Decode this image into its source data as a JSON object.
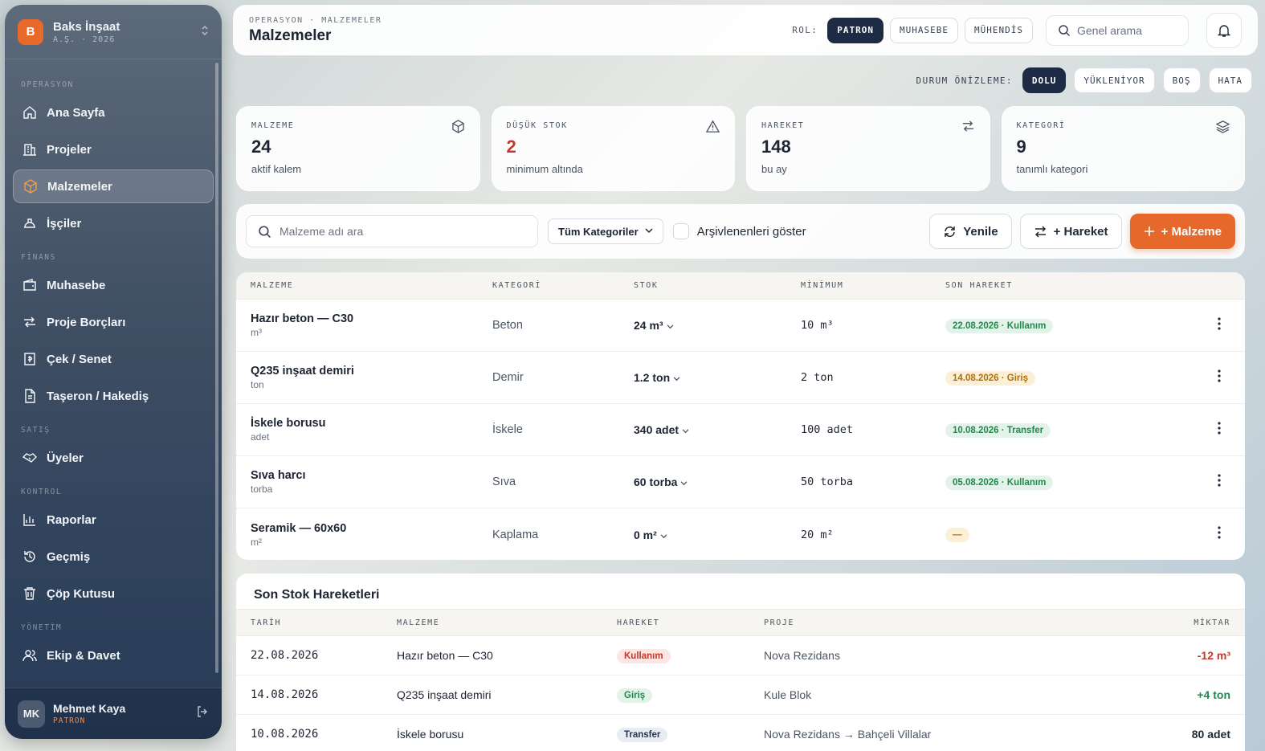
{
  "brand": {
    "logo_letter": "B",
    "name": "Baks İnşaat",
    "sub": "A.Ş. · 2026"
  },
  "sidebar": {
    "sections": [
      {
        "label": "OPERASYON",
        "items": [
          {
            "label": "Ana Sayfa",
            "icon": "home-icon",
            "active": false
          },
          {
            "label": "Projeler",
            "icon": "building-icon",
            "active": false
          },
          {
            "label": "Malzemeler",
            "icon": "box-icon",
            "active": true
          },
          {
            "label": "İşçiler",
            "icon": "helmet-icon",
            "active": false
          }
        ]
      },
      {
        "label": "FİNANS",
        "items": [
          {
            "label": "Muhasebe",
            "icon": "wallet-icon",
            "active": false
          },
          {
            "label": "Proje Borçları",
            "icon": "transfer-icon",
            "active": false
          },
          {
            "label": "Çek / Senet",
            "icon": "receipt-icon",
            "active": false
          },
          {
            "label": "Taşeron / Hakediş",
            "icon": "document-icon",
            "active": false
          }
        ]
      },
      {
        "label": "SATIŞ",
        "items": [
          {
            "label": "Üyeler",
            "icon": "handshake-icon",
            "active": false
          }
        ]
      },
      {
        "label": "KONTROL",
        "items": [
          {
            "label": "Raporlar",
            "icon": "bar-chart-icon",
            "active": false
          },
          {
            "label": "Geçmiş",
            "icon": "history-icon",
            "active": false
          },
          {
            "label": "Çöp Kutusu",
            "icon": "trash-icon",
            "active": false
          }
        ]
      },
      {
        "label": "YÖNETİM",
        "items": [
          {
            "label": "Ekip & Davet",
            "icon": "team-icon",
            "active": false
          }
        ]
      }
    ]
  },
  "user": {
    "initials": "MK",
    "name": "Mehmet Kaya",
    "role": "PATRON"
  },
  "header": {
    "breadcrumb": "OPERASYON · MALZEMELER",
    "title": "Malzemeler",
    "role_label": "ROL:",
    "roles": [
      "PATRON",
      "MUHASEBE",
      "MÜHENDİS"
    ],
    "active_role": "PATRON",
    "search_placeholder": "Genel arama"
  },
  "preview": {
    "label": "DURUM ÖNİZLEME:",
    "states": [
      "DOLU",
      "YÜKLENİYOR",
      "BOŞ",
      "HATA"
    ],
    "active": "DOLU"
  },
  "stats": [
    {
      "label": "MALZEME",
      "value": "24",
      "sub": "aktif kalem",
      "icon": "cube-icon",
      "alert": false
    },
    {
      "label": "DÜŞÜK STOK",
      "value": "2",
      "sub": "minimum altında",
      "icon": "warning-icon",
      "alert": true
    },
    {
      "label": "HAREKET",
      "value": "148",
      "sub": "bu ay",
      "icon": "swap-icon",
      "alert": false
    },
    {
      "label": "KATEGORİ",
      "value": "9",
      "sub": "tanımlı kategori",
      "icon": "layers-icon",
      "alert": false
    }
  ],
  "toolbar": {
    "search_placeholder": "Malzeme adı ara",
    "category_select": "Tüm Kategoriler",
    "archive_label": "Arşivlenenleri göster",
    "refresh_label": "Yenile",
    "movement_label": "+ Hareket",
    "add_label": "+ Malzeme"
  },
  "table": {
    "headers": [
      "MALZEME",
      "KATEGORİ",
      "STOK",
      "MİNİMUM",
      "SON HAREKET"
    ],
    "rows": [
      {
        "name": "Hazır beton — C30",
        "unit": "m³",
        "category": "Beton",
        "stock": "24 m³",
        "minimum": "10 m³",
        "last": "22.08.2026 · Kullanım",
        "last_color": "green"
      },
      {
        "name": "Q235 inşaat demiri",
        "unit": "ton",
        "category": "Demir",
        "stock": "1.2 ton",
        "minimum": "2 ton",
        "last": "14.08.2026 · Giriş",
        "last_color": "amber"
      },
      {
        "name": "İskele borusu",
        "unit": "adet",
        "category": "İskele",
        "stock": "340 adet",
        "minimum": "100 adet",
        "last": "10.08.2026 · Transfer",
        "last_color": "green"
      },
      {
        "name": "Sıva harcı",
        "unit": "torba",
        "category": "Sıva",
        "stock": "60 torba",
        "minimum": "50 torba",
        "last": "05.08.2026 · Kullanım",
        "last_color": "green"
      },
      {
        "name": "Seramik — 60x60",
        "unit": "m²",
        "category": "Kaplama",
        "stock": "0 m²",
        "minimum": "20 m²",
        "last": "—",
        "last_color": "amber"
      }
    ]
  },
  "movements": {
    "title": "Son Stok Hareketleri",
    "headers": [
      "TARİH",
      "MALZEME",
      "HAREKET",
      "PROJE",
      "MİKTAR"
    ],
    "rows": [
      {
        "date": "22.08.2026",
        "material": "Hazır beton — C30",
        "type": "Kullanım",
        "type_color": "red",
        "project": "Nova Rezidans",
        "amount": "-12 m³",
        "amount_color": "neg"
      },
      {
        "date": "14.08.2026",
        "material": "Q235 inşaat demiri",
        "type": "Giriş",
        "type_color": "green",
        "project": "Kule Blok",
        "amount": "+4 ton",
        "amount_color": "pos"
      },
      {
        "date": "10.08.2026",
        "material": "İskele borusu",
        "type": "Transfer",
        "type_color": "blue",
        "project": "Nova Rezidans → Bahçeli Villalar",
        "amount": "80 adet",
        "amount_color": "neutral"
      }
    ]
  }
}
